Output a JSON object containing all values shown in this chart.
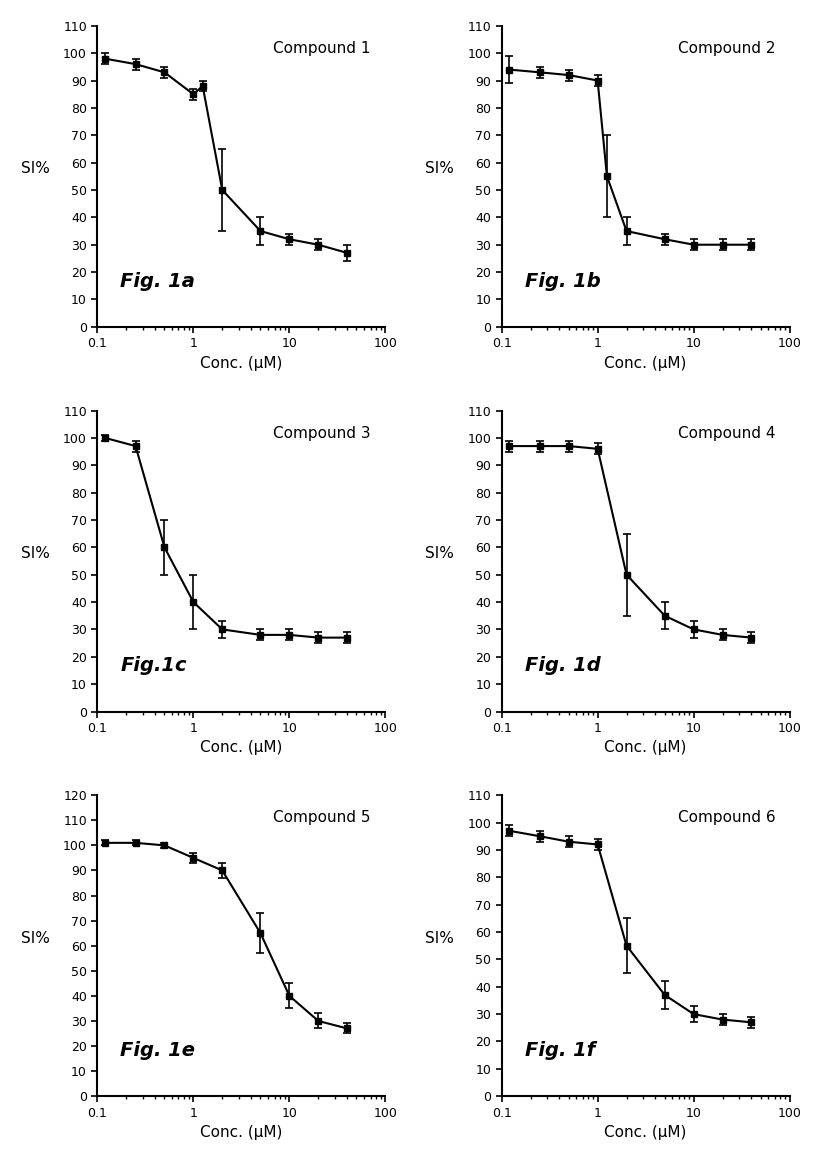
{
  "background_color": "#ffffff",
  "plots": [
    {
      "label": "Compound 1",
      "fig_label": "Fig. 1a",
      "x": [
        0.12,
        0.25,
        0.5,
        1.0,
        1.25,
        2.0,
        5.0,
        10.0,
        20.0,
        40.0
      ],
      "y": [
        98,
        96,
        93,
        85,
        88,
        50,
        35,
        32,
        30,
        27
      ],
      "yerr": [
        2,
        2,
        2,
        2,
        2,
        15,
        5,
        2,
        2,
        3
      ],
      "xlim": [
        0.1,
        100
      ],
      "ylim": [
        0,
        110
      ],
      "yticks": [
        0,
        10,
        20,
        30,
        40,
        50,
        60,
        70,
        80,
        90,
        100,
        110
      ],
      "xlabel": "Conc. (μM)",
      "ylabel": "SI%"
    },
    {
      "label": "Compound 2",
      "fig_label": "Fig. 1b",
      "x": [
        0.12,
        0.25,
        0.5,
        1.0,
        1.25,
        2.0,
        5.0,
        10.0,
        20.0,
        40.0
      ],
      "y": [
        94,
        93,
        92,
        90,
        55,
        35,
        32,
        30,
        30,
        30
      ],
      "yerr": [
        5,
        2,
        2,
        2,
        15,
        5,
        2,
        2,
        2,
        2
      ],
      "xlim": [
        0.1,
        100
      ],
      "ylim": [
        0,
        110
      ],
      "yticks": [
        0,
        10,
        20,
        30,
        40,
        50,
        60,
        70,
        80,
        90,
        100,
        110
      ],
      "xlabel": "Conc. (μM)",
      "ylabel": "SI%"
    },
    {
      "label": "Compound 3",
      "fig_label": "Fig.1c",
      "x": [
        0.12,
        0.25,
        0.5,
        1.0,
        2.0,
        5.0,
        10.0,
        20.0,
        40.0
      ],
      "y": [
        100,
        97,
        60,
        40,
        30,
        28,
        28,
        27,
        27
      ],
      "yerr": [
        1,
        2,
        10,
        10,
        3,
        2,
        2,
        2,
        2
      ],
      "xlim": [
        0.1,
        100
      ],
      "ylim": [
        0,
        110
      ],
      "yticks": [
        0,
        10,
        20,
        30,
        40,
        50,
        60,
        70,
        80,
        90,
        100,
        110
      ],
      "xlabel": "Conc. (μM)",
      "ylabel": "SI%"
    },
    {
      "label": "Compound 4",
      "fig_label": "Fig. 1d",
      "x": [
        0.12,
        0.25,
        0.5,
        1.0,
        2.0,
        5.0,
        10.0,
        20.0,
        40.0
      ],
      "y": [
        97,
        97,
        97,
        96,
        50,
        35,
        30,
        28,
        27
      ],
      "yerr": [
        2,
        2,
        2,
        2,
        15,
        5,
        3,
        2,
        2
      ],
      "xlim": [
        0.1,
        100
      ],
      "ylim": [
        0,
        110
      ],
      "yticks": [
        0,
        10,
        20,
        30,
        40,
        50,
        60,
        70,
        80,
        90,
        100,
        110
      ],
      "xlabel": "Conc. (μM)",
      "ylabel": "SI%"
    },
    {
      "label": "Compound 5",
      "fig_label": "Fig. 1e",
      "x": [
        0.12,
        0.25,
        0.5,
        1.0,
        2.0,
        5.0,
        10.0,
        20.0,
        40.0
      ],
      "y": [
        101,
        101,
        100,
        95,
        90,
        65,
        40,
        30,
        27
      ],
      "yerr": [
        1,
        1,
        1,
        2,
        3,
        8,
        5,
        3,
        2
      ],
      "xlim": [
        0.1,
        100
      ],
      "ylim": [
        0,
        120
      ],
      "yticks": [
        0,
        10,
        20,
        30,
        40,
        50,
        60,
        70,
        80,
        90,
        100,
        110,
        120
      ],
      "xlabel": "Conc. (μM)",
      "ylabel": "SI%"
    },
    {
      "label": "Compound 6",
      "fig_label": "Fig. 1f",
      "x": [
        0.12,
        0.25,
        0.5,
        1.0,
        2.0,
        5.0,
        10.0,
        20.0,
        40.0
      ],
      "y": [
        97,
        95,
        93,
        92,
        55,
        37,
        30,
        28,
        27
      ],
      "yerr": [
        2,
        2,
        2,
        2,
        10,
        5,
        3,
        2,
        2
      ],
      "xlim": [
        0.1,
        100
      ],
      "ylim": [
        0,
        110
      ],
      "yticks": [
        0,
        10,
        20,
        30,
        40,
        50,
        60,
        70,
        80,
        90,
        100,
        110
      ],
      "xlabel": "Conc. (μM)",
      "ylabel": "SI%"
    }
  ]
}
